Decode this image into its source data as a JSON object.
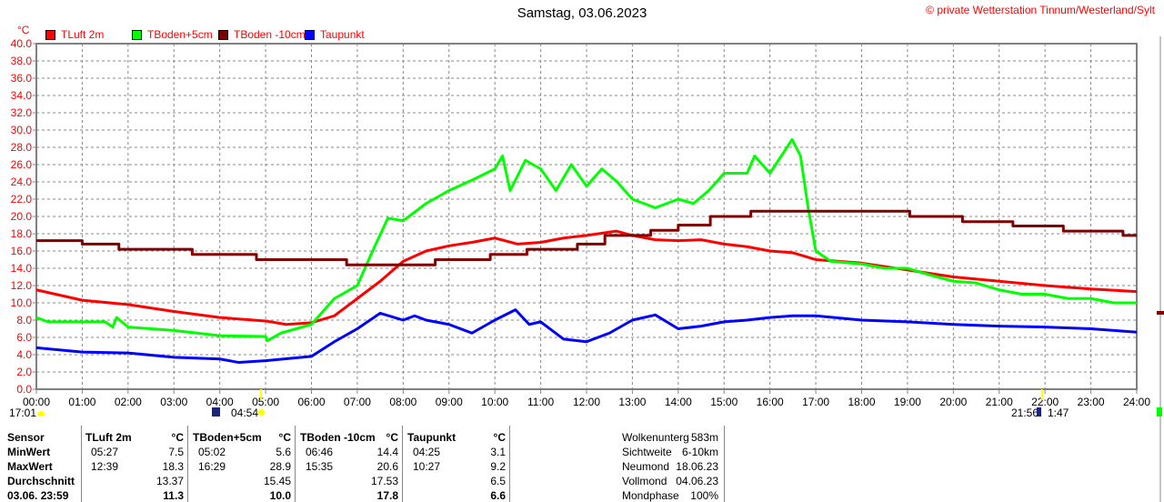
{
  "title": "Samstag, 03.06.2023",
  "copyright": "© private Wetterstation Tinnum/Westerland/Sylt",
  "chart_data": {
    "type": "line",
    "title": "Samstag, 03.06.2023",
    "ylabel": "°C",
    "xlabel": "",
    "ylim": [
      0,
      40
    ],
    "yticks_step": 2,
    "xlim": [
      "00:00",
      "24:00"
    ],
    "xticks": [
      "00:00",
      "01:00",
      "02:00",
      "03:00",
      "04:00",
      "05:00",
      "06:00",
      "07:00",
      "08:00",
      "09:00",
      "10:00",
      "11:00",
      "12:00",
      "13:00",
      "14:00",
      "15:00",
      "16:00",
      "17:00",
      "18:00",
      "19:00",
      "20:00",
      "21:00",
      "22:00",
      "23:00",
      "24:00"
    ],
    "grid": true,
    "legend_position": "top-left",
    "series": [
      {
        "name": "TLuft 2m",
        "color": "#ff0000",
        "step": false,
        "x": [
          "00:00",
          "01:00",
          "02:00",
          "03:00",
          "04:00",
          "05:00",
          "05:27",
          "06:00",
          "06:30",
          "07:00",
          "07:30",
          "08:00",
          "08:30",
          "09:00",
          "09:30",
          "10:00",
          "10:30",
          "11:00",
          "11:30",
          "12:00",
          "12:39",
          "13:00",
          "13:30",
          "14:00",
          "14:30",
          "15:00",
          "15:30",
          "16:00",
          "16:30",
          "17:00",
          "18:00",
          "19:00",
          "20:00",
          "21:00",
          "22:00",
          "23:00",
          "24:00"
        ],
        "y": [
          11.5,
          10.3,
          9.8,
          9.0,
          8.3,
          7.9,
          7.5,
          7.7,
          8.5,
          10.5,
          12.5,
          14.8,
          16.0,
          16.6,
          17.0,
          17.5,
          16.8,
          17.0,
          17.5,
          17.8,
          18.3,
          17.8,
          17.3,
          17.2,
          17.3,
          16.8,
          16.5,
          16.0,
          15.8,
          15.0,
          14.6,
          13.8,
          13.0,
          12.5,
          12.0,
          11.6,
          11.3
        ]
      },
      {
        "name": "TBoden+5cm",
        "color": "#00ff00",
        "step": false,
        "x": [
          "00:00",
          "00:15",
          "01:30",
          "01:40",
          "01:45",
          "02:00",
          "03:00",
          "04:00",
          "05:00",
          "05:02",
          "05:20",
          "06:00",
          "06:30",
          "07:00",
          "07:20",
          "07:40",
          "08:00",
          "08:30",
          "09:00",
          "09:30",
          "10:00",
          "10:10",
          "10:20",
          "10:40",
          "11:00",
          "11:20",
          "11:40",
          "12:00",
          "12:20",
          "12:40",
          "13:00",
          "13:30",
          "14:00",
          "14:20",
          "14:40",
          "15:00",
          "15:30",
          "15:40",
          "16:00",
          "16:29",
          "16:40",
          "16:50",
          "17:00",
          "17:20",
          "18:00",
          "18:30",
          "19:00",
          "19:30",
          "20:00",
          "20:30",
          "21:00",
          "21:30",
          "22:00",
          "22:30",
          "23:00",
          "23:30",
          "24:00"
        ],
        "y": [
          8.3,
          7.8,
          7.8,
          7.2,
          8.3,
          7.2,
          6.8,
          6.2,
          6.1,
          5.6,
          6.5,
          7.5,
          10.5,
          12.0,
          16.0,
          19.8,
          19.5,
          21.5,
          23.0,
          24.2,
          25.5,
          27.0,
          23.0,
          26.5,
          25.5,
          23.0,
          26.0,
          23.5,
          25.5,
          24.0,
          22.0,
          21.0,
          22.0,
          21.5,
          23.0,
          25.0,
          25.0,
          27.0,
          25.0,
          28.9,
          27.0,
          21.0,
          16.0,
          14.8,
          14.5,
          14.0,
          14.0,
          13.2,
          12.5,
          12.3,
          11.5,
          11.0,
          11.0,
          10.5,
          10.5,
          10.0,
          10.0
        ]
      },
      {
        "name": "TBoden -10cm",
        "color": "#800000",
        "step": true,
        "x": [
          "00:00",
          "01:00",
          "01:48",
          "03:24",
          "04:48",
          "06:46",
          "08:42",
          "09:54",
          "10:42",
          "11:48",
          "12:24",
          "13:24",
          "14:00",
          "14:42",
          "15:35",
          "19:03",
          "20:12",
          "21:18",
          "22:24",
          "23:42",
          "24:00"
        ],
        "y": [
          17.2,
          16.8,
          16.2,
          15.6,
          15.0,
          14.4,
          15.0,
          15.6,
          16.2,
          16.8,
          17.8,
          18.4,
          19.0,
          20.0,
          20.6,
          20.0,
          19.4,
          18.9,
          18.3,
          17.8,
          17.8
        ]
      },
      {
        "name": "Taupunkt",
        "color": "#0000ff",
        "step": false,
        "x": [
          "00:00",
          "01:00",
          "02:00",
          "03:00",
          "04:00",
          "04:25",
          "05:00",
          "06:00",
          "06:30",
          "07:00",
          "07:30",
          "08:00",
          "08:15",
          "08:30",
          "09:00",
          "09:30",
          "10:00",
          "10:27",
          "10:45",
          "11:00",
          "11:30",
          "12:00",
          "12:30",
          "13:00",
          "13:30",
          "14:00",
          "14:30",
          "15:00",
          "15:30",
          "16:00",
          "16:30",
          "17:00",
          "18:00",
          "19:00",
          "20:00",
          "21:00",
          "22:00",
          "23:00",
          "24:00"
        ],
        "y": [
          4.8,
          4.3,
          4.2,
          3.7,
          3.5,
          3.1,
          3.3,
          3.8,
          5.5,
          7.0,
          8.8,
          8.0,
          8.5,
          8.0,
          7.5,
          6.5,
          8.0,
          9.2,
          7.5,
          7.8,
          5.8,
          5.5,
          6.5,
          8.0,
          8.6,
          7.0,
          7.3,
          7.8,
          8.0,
          8.3,
          8.5,
          8.5,
          8.0,
          7.8,
          7.5,
          7.3,
          7.2,
          7.0,
          6.6
        ]
      }
    ]
  },
  "astro": {
    "moonset": "17:01",
    "sunrise": "04:54",
    "sunset": "21:56",
    "moonrise": "1:47"
  },
  "table": {
    "row_labels": [
      "Sensor",
      "MinWert",
      "MaxWert",
      "Durchschnitt",
      "03.06. 23:59"
    ],
    "columns": [
      {
        "name": "TLuft 2m",
        "unit": "°C",
        "min_time": "05:27",
        "min": "7.5",
        "max_time": "12:39",
        "max": "18.3",
        "avg": "13.37",
        "current": "11.3"
      },
      {
        "name": "TBoden+5cm",
        "unit": "°C",
        "min_time": "05:02",
        "min": "5.6",
        "max_time": "16:29",
        "max": "28.9",
        "avg": "15.45",
        "current": "10.0"
      },
      {
        "name": "TBoden -10cm",
        "unit": "°C",
        "min_time": "06:46",
        "min": "14.4",
        "max_time": "15:35",
        "max": "20.6",
        "avg": "17.53",
        "current": "17.8"
      },
      {
        "name": "Taupunkt",
        "unit": "°C",
        "min_time": "04:25",
        "min": "3.1",
        "max_time": "10:27",
        "max": "9.2",
        "avg": "6.5",
        "current": "6.6"
      }
    ]
  },
  "info": [
    {
      "label": "Wolkenunterg",
      "value": "583m"
    },
    {
      "label": "Sichtweite",
      "value": "6-10km"
    },
    {
      "label": "Neumond",
      "value": "18.06.23"
    },
    {
      "label": "Vollmond",
      "value": "04.06.23"
    },
    {
      "label": "Mondphase",
      "value": "100%"
    }
  ]
}
